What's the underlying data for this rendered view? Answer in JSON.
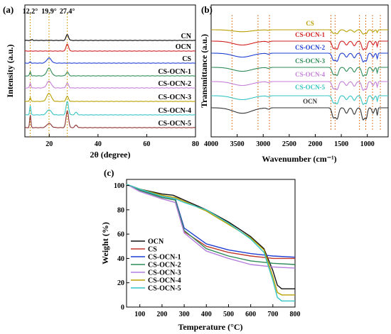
{
  "figure": {
    "panels": [
      {
        "letter": "(a)"
      },
      {
        "letter": "(b)"
      },
      {
        "letter": "(c)"
      }
    ]
  },
  "chart_data": [
    {
      "panel": "(a)",
      "type": "line",
      "xlabel": "2θ (degree)",
      "ylabel": "Intensity (a.u.)",
      "xlim": [
        10,
        80
      ],
      "xticks": [
        20,
        40,
        60,
        80
      ],
      "yticks_shown": false,
      "annotations": [
        {
          "label": "12.2°",
          "x": 12.2
        },
        {
          "label": "19.9°",
          "x": 19.9
        },
        {
          "label": "27.4°",
          "x": 27.4
        }
      ],
      "series": [
        {
          "name": "CN",
          "color": "#000000",
          "peaks": [
            {
              "x": 13.0,
              "h": 0.1
            },
            {
              "x": 27.4,
              "h": 0.7
            }
          ]
        },
        {
          "name": "OCN",
          "color": "#d21f1f",
          "peaks": [
            {
              "x": 27.4,
              "h": 0.85
            }
          ]
        },
        {
          "name": "CS",
          "color": "#1f3fd2",
          "peaks": [
            {
              "x": 19.9,
              "h": 0.6
            },
            {
              "x": 12.2,
              "h": 0.15
            }
          ]
        },
        {
          "name": "CS-OCN-1",
          "color": "#2e8b57",
          "peaks": [
            {
              "x": 12.2,
              "h": 0.5
            },
            {
              "x": 19.9,
              "h": 0.9
            },
            {
              "x": 27.4,
              "h": 0.45
            }
          ]
        },
        {
          "name": "CS-OCN-2",
          "color": "#c47fd8",
          "peaks": [
            {
              "x": 12.2,
              "h": 0.6
            },
            {
              "x": 19.9,
              "h": 0.8
            },
            {
              "x": 27.4,
              "h": 0.55
            }
          ]
        },
        {
          "name": "CS-OCN-3",
          "color": "#b8a000",
          "peaks": [
            {
              "x": 12.2,
              "h": 0.5
            },
            {
              "x": 19.9,
              "h": 0.95
            },
            {
              "x": 27.4,
              "h": 0.6
            }
          ]
        },
        {
          "name": "CS-OCN-4",
          "color": "#36c4c4",
          "peaks": [
            {
              "x": 12.2,
              "h": 1.1
            },
            {
              "x": 19.9,
              "h": 0.6
            },
            {
              "x": 27.4,
              "h": 1.6
            },
            {
              "x": 31.0,
              "h": 0.3
            }
          ]
        },
        {
          "name": "CS-OCN-5",
          "color": "#8b2e2e",
          "peaks": [
            {
              "x": 12.2,
              "h": 1.5
            },
            {
              "x": 19.9,
              "h": 0.5
            },
            {
              "x": 27.4,
              "h": 2.0
            },
            {
              "x": 31.0,
              "h": 0.3
            }
          ]
        }
      ]
    },
    {
      "panel": "(b)",
      "type": "line",
      "xlabel": "Wavenumber (cm⁻¹)",
      "ylabel": "Transmittance (a.u.)",
      "xlim": [
        4000,
        600
      ],
      "xticks": [
        4000,
        3500,
        3000,
        2500,
        2000,
        1500,
        1000
      ],
      "yticks_shown": false,
      "reference_lines": [
        3600,
        3100,
        2880,
        1700,
        1620,
        1150,
        1030,
        900,
        750
      ],
      "series": [
        {
          "name": "CS",
          "color": "#b8a000"
        },
        {
          "name": "CS-OCN-1",
          "color": "#d21f1f"
        },
        {
          "name": "CS-OCN-2",
          "color": "#1f3fd2"
        },
        {
          "name": "CS-OCN-3",
          "color": "#2e8b57"
        },
        {
          "name": "CS-OCN-4",
          "color": "#c47fd8"
        },
        {
          "name": "CS-OCN-5",
          "color": "#36c4c4"
        },
        {
          "name": "OCN",
          "color": "#333333"
        }
      ]
    },
    {
      "panel": "(c)",
      "type": "line",
      "xlabel": "Temperature (°C)",
      "ylabel": "Weight (%)",
      "xlim": [
        40,
        800
      ],
      "ylim": [
        0,
        105
      ],
      "xticks": [
        100,
        200,
        300,
        400,
        500,
        600,
        700,
        800
      ],
      "yticks": [
        0,
        20,
        40,
        60,
        80,
        100
      ],
      "legend_position": "bottom-left",
      "series": [
        {
          "name": "OCN",
          "color": "#111111",
          "points": [
            [
              40,
              101
            ],
            [
              100,
              97
            ],
            [
              200,
              93
            ],
            [
              250,
              92
            ],
            [
              300,
              88
            ],
            [
              400,
              80
            ],
            [
              500,
              70
            ],
            [
              600,
              58
            ],
            [
              660,
              48
            ],
            [
              700,
              30
            ],
            [
              720,
              18
            ],
            [
              740,
              15
            ],
            [
              800,
              15
            ]
          ]
        },
        {
          "name": "CS",
          "color": "#c0392b",
          "points": [
            [
              40,
              101
            ],
            [
              100,
              96
            ],
            [
              200,
              90
            ],
            [
              260,
              88
            ],
            [
              300,
              62
            ],
            [
              400,
              50
            ],
            [
              500,
              45
            ],
            [
              600,
              42
            ],
            [
              700,
              40
            ],
            [
              800,
              40
            ]
          ]
        },
        {
          "name": "CS-OCN-1",
          "color": "#1f3fd2",
          "points": [
            [
              40,
              101
            ],
            [
              100,
              96
            ],
            [
              200,
              91
            ],
            [
              260,
              89
            ],
            [
              300,
              65
            ],
            [
              400,
              52
            ],
            [
              500,
              47
            ],
            [
              600,
              44
            ],
            [
              700,
              42
            ],
            [
              800,
              41
            ]
          ]
        },
        {
          "name": "CS-OCN-2",
          "color": "#2e8b57",
          "points": [
            [
              40,
              101
            ],
            [
              100,
              96
            ],
            [
              200,
              90
            ],
            [
              260,
              88
            ],
            [
              300,
              63
            ],
            [
              400,
              48
            ],
            [
              500,
              42
            ],
            [
              600,
              38
            ],
            [
              700,
              36
            ],
            [
              800,
              35
            ]
          ]
        },
        {
          "name": "CS-OCN-3",
          "color": "#b57edc",
          "points": [
            [
              40,
              101
            ],
            [
              100,
              95
            ],
            [
              200,
              89
            ],
            [
              260,
              86
            ],
            [
              300,
              61
            ],
            [
              400,
              46
            ],
            [
              500,
              40
            ],
            [
              600,
              35
            ],
            [
              700,
              33
            ],
            [
              800,
              32
            ]
          ]
        },
        {
          "name": "CS-OCN-4",
          "color": "#b8a000",
          "points": [
            [
              40,
              101
            ],
            [
              100,
              97
            ],
            [
              200,
              92
            ],
            [
              260,
              90
            ],
            [
              300,
              87
            ],
            [
              400,
              79
            ],
            [
              500,
              68
            ],
            [
              600,
              57
            ],
            [
              660,
              47
            ],
            [
              700,
              25
            ],
            [
              720,
              12
            ],
            [
              740,
              10
            ],
            [
              800,
              10
            ]
          ]
        },
        {
          "name": "CS-OCN-5",
          "color": "#36c4c4",
          "points": [
            [
              40,
              101
            ],
            [
              100,
              97
            ],
            [
              200,
              91
            ],
            [
              260,
              89
            ],
            [
              300,
              86
            ],
            [
              400,
              80
            ],
            [
              500,
              69
            ],
            [
              600,
              56
            ],
            [
              660,
              45
            ],
            [
              700,
              22
            ],
            [
              720,
              8
            ],
            [
              740,
              5
            ],
            [
              800,
              5
            ]
          ]
        }
      ]
    }
  ]
}
